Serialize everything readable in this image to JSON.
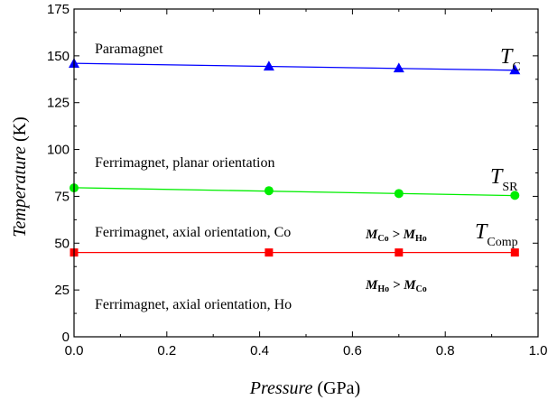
{
  "chart_data": {
    "type": "line",
    "xlabel": {
      "italic": "Pressure",
      "unit": " (GPa)"
    },
    "ylabel": {
      "italic": "Temperature",
      "unit": " (K)"
    },
    "xlim": [
      0.0,
      1.0
    ],
    "ylim": [
      0,
      175
    ],
    "x_ticks": [
      "0.0",
      "0.2",
      "0.4",
      "0.6",
      "0.8",
      "1.0"
    ],
    "y_ticks": [
      "0",
      "25",
      "50",
      "75",
      "100",
      "125",
      "150",
      "175"
    ],
    "series": [
      {
        "name": "T_C",
        "color": "#0000ff",
        "marker": "triangle",
        "x": [
          0.0,
          0.42,
          0.7,
          0.95
        ],
        "y": [
          146,
          144.5,
          143.5,
          142.5
        ],
        "fit": [
          146,
          142.3
        ]
      },
      {
        "name": "T_SR",
        "color": "#00ee00",
        "marker": "circle",
        "x": [
          0.0,
          0.42,
          0.7,
          0.95
        ],
        "y": [
          79.5,
          78,
          76.5,
          75.5
        ],
        "fit": [
          79.6,
          75.4
        ]
      },
      {
        "name": "T_Comp",
        "color": "#ff0000",
        "marker": "square",
        "x": [
          0.0,
          0.42,
          0.7,
          0.95
        ],
        "y": [
          45,
          45,
          45,
          45
        ],
        "fit": [
          45,
          45
        ]
      }
    ],
    "region_labels": [
      "Paramagnet",
      "Ferrimagnet, planar orientation",
      "Ferrimagnet, axial orientation, Co",
      "Ferrimagnet, axial orientation, Ho"
    ],
    "curve_labels": {
      "tc": {
        "main": "T",
        "sub": "C"
      },
      "tsr": {
        "main": "T",
        "sub": "SR"
      },
      "tcomp": {
        "main": "T",
        "sub": "Comp"
      }
    },
    "moment_labels": {
      "co_gt_ho": {
        "m1": "M",
        "s1": "Co",
        "op": " > ",
        "m2": "M",
        "s2": "Ho"
      },
      "ho_gt_co": {
        "m1": "M",
        "s1": "Ho",
        "op": " > ",
        "m2": "M",
        "s2": "Co"
      }
    }
  }
}
